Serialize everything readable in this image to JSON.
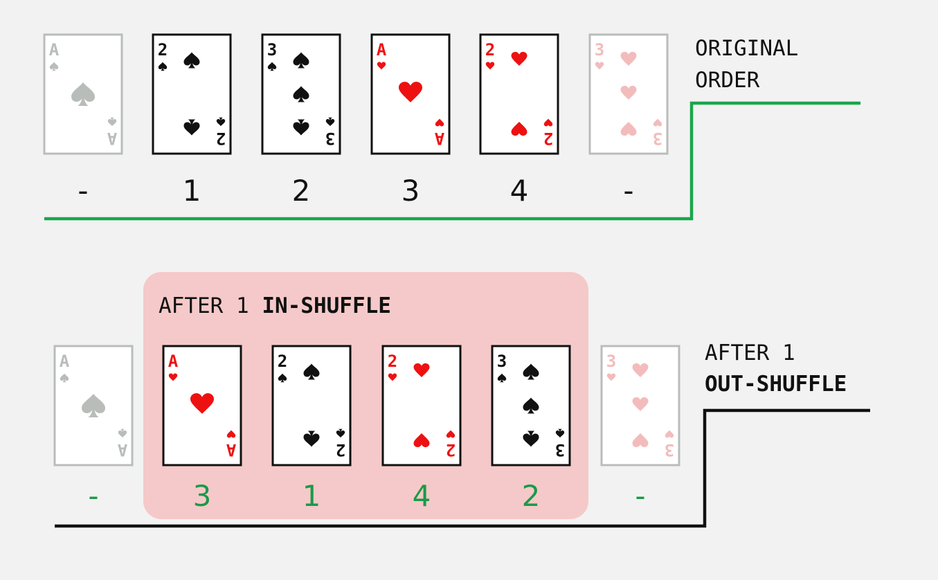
{
  "colors": {
    "background": "#f2f2f2",
    "black": "#111111",
    "red": "#ee1111",
    "green_line": "#1aa64a",
    "green_text": "#1a9a48",
    "faded_gray": "#b9bdb9",
    "faded_pink": "#f3bcbc",
    "highlight": "#f5c9c9"
  },
  "original": {
    "label_line1": "ORIGINAL",
    "label_line2": "ORDER",
    "cards": [
      {
        "rank": "A",
        "suit": "spade",
        "faded": true,
        "position": "-"
      },
      {
        "rank": "2",
        "suit": "spade",
        "faded": false,
        "position": "1"
      },
      {
        "rank": "3",
        "suit": "spade",
        "faded": false,
        "position": "2"
      },
      {
        "rank": "A",
        "suit": "heart",
        "faded": false,
        "position": "3"
      },
      {
        "rank": "2",
        "suit": "heart",
        "faded": false,
        "position": "4"
      },
      {
        "rank": "3",
        "suit": "heart",
        "faded": true,
        "position": "-"
      }
    ]
  },
  "shuffled": {
    "in_shuffle_label_prefix": "AFTER 1 ",
    "in_shuffle_label_bold": "IN-SHUFFLE",
    "out_shuffle_label_line1": "AFTER 1",
    "out_shuffle_label_line2": "OUT-SHUFFLE",
    "cards": [
      {
        "rank": "A",
        "suit": "spade",
        "faded": true,
        "position": "-"
      },
      {
        "rank": "A",
        "suit": "heart",
        "faded": false,
        "position": "3"
      },
      {
        "rank": "2",
        "suit": "spade",
        "faded": false,
        "position": "1"
      },
      {
        "rank": "2",
        "suit": "heart",
        "faded": false,
        "position": "4"
      },
      {
        "rank": "3",
        "suit": "spade",
        "faded": false,
        "position": "2"
      },
      {
        "rank": "3",
        "suit": "heart",
        "faded": true,
        "position": "-"
      }
    ]
  }
}
